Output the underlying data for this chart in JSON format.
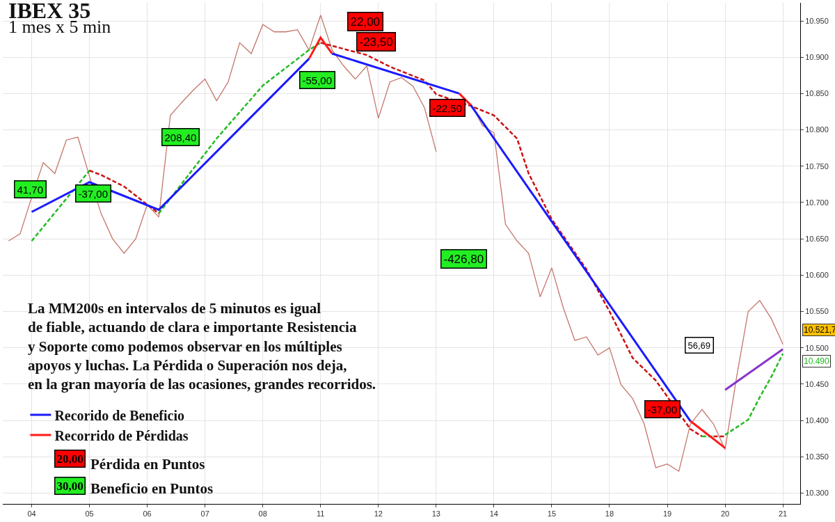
{
  "chart_data": {
    "type": "line",
    "title": "IBEX 35",
    "subtitle": "1 mes x 5 min",
    "categories": [
      null,
      null,
      "04",
      null,
      null,
      null,
      null,
      "05",
      null,
      null,
      null,
      null,
      "06",
      null,
      null,
      null,
      null,
      "07",
      null,
      null,
      null,
      null,
      "08",
      null,
      null,
      null,
      null,
      "11",
      null,
      null,
      null,
      null,
      "12",
      null,
      null,
      null,
      null,
      "13",
      null,
      null,
      null,
      null,
      "14",
      null,
      null,
      null,
      null,
      "15",
      null,
      null,
      null,
      null,
      "18",
      null,
      null,
      null,
      null,
      "19",
      null,
      null,
      null,
      null,
      "20",
      null,
      null,
      null,
      null,
      "21",
      null
    ],
    "ylim": [
      10285,
      10975
    ],
    "yticks": [
      {
        "value": 10300,
        "label": "10.300"
      },
      {
        "value": 10350,
        "label": "10.350"
      },
      {
        "value": 10400,
        "label": "10.400"
      },
      {
        "value": 10450,
        "label": "10.450"
      },
      {
        "value": 10500,
        "label": "10.500"
      },
      {
        "value": 10550,
        "label": "10.550"
      },
      {
        "value": 10600,
        "label": "10.600"
      },
      {
        "value": 10650,
        "label": "10.650"
      },
      {
        "value": 10700,
        "label": "10.700"
      },
      {
        "value": 10750,
        "label": "10.750"
      },
      {
        "value": 10800,
        "label": "10.800"
      },
      {
        "value": 10850,
        "label": "10.850"
      },
      {
        "value": 10900,
        "label": "10.900"
      },
      {
        "value": 10950,
        "label": "10.950"
      }
    ],
    "grid": true,
    "legend": "bottom left",
    "series": [
      {
        "color": "#c4756a",
        "values": [
          10647,
          10657,
          10707,
          10755,
          10740,
          10786,
          10790,
          10736,
          10685,
          10650,
          10630,
          10650,
          10697,
          10680,
          10820,
          10838,
          10855,
          10870,
          10840,
          10866,
          10920,
          10905,
          10945,
          10935,
          10935,
          10938,
          10910,
          10958,
          10910,
          10888,
          10870,
          10888,
          10816,
          10866,
          10872,
          10860,
          10830,
          10770,
          null,
          null,
          10836,
          10806,
          10796,
          10670,
          10647,
          10630,
          10570,
          10610,
          10555,
          10510,
          10515,
          10490,
          10500,
          10449,
          10430,
          10395,
          10335,
          10340,
          10330,
          10395,
          10415,
          10395,
          10360,
          10460,
          10550,
          10565,
          10540,
          10505,
          null
        ]
      },
      {
        "color": "#22bb22",
        "line_style": "dashed",
        "values": [
          null,
          null,
          10647,
          null,
          null,
          null,
          null,
          10744,
          null,
          null,
          null,
          null,
          null,
          null,
          null,
          null,
          null,
          null,
          null,
          null,
          null,
          null,
          null,
          null,
          null,
          null,
          null,
          null,
          null,
          null,
          null,
          null,
          null,
          null,
          null,
          null,
          null,
          null,
          null,
          null,
          null,
          null,
          null,
          null,
          null,
          null,
          null,
          null,
          null,
          null,
          null,
          null,
          null,
          null,
          null,
          null,
          null,
          null,
          null,
          null,
          null,
          null,
          null,
          null,
          null,
          null,
          null,
          null,
          null
        ]
      },
      {
        "color": "#cc1111",
        "line_style": "dashed",
        "values": [
          null,
          null,
          null,
          null,
          null,
          null,
          null,
          10744,
          10738,
          null,
          10722,
          null,
          10697,
          10685,
          null,
          null,
          null,
          null,
          null,
          null,
          null,
          null,
          null,
          null,
          null,
          null,
          null,
          null,
          null,
          null,
          null,
          null,
          null,
          null,
          null,
          null,
          null,
          null,
          null,
          null,
          null,
          null,
          null,
          null,
          null,
          null,
          null,
          null,
          null,
          null,
          null,
          null,
          null,
          null,
          null,
          null,
          null,
          null,
          null,
          null,
          null,
          null,
          null,
          null,
          null,
          null,
          null,
          null,
          null
        ]
      },
      {
        "color": "#22bb22",
        "line_style": "dashed",
        "values": [
          null,
          null,
          null,
          null,
          null,
          null,
          null,
          null,
          null,
          null,
          null,
          null,
          null,
          10685,
          null,
          null,
          null,
          null,
          10788,
          null,
          null,
          null,
          10861,
          null,
          null,
          null,
          10910,
          10920,
          null,
          null,
          null,
          null,
          null,
          null,
          null,
          null,
          null,
          null,
          null,
          null,
          null,
          null,
          null,
          null,
          null,
          null,
          null,
          null,
          null,
          null,
          null,
          null,
          null,
          null,
          null,
          null,
          null,
          null,
          null,
          null,
          null,
          null,
          null,
          null,
          null,
          null,
          null,
          null,
          null
        ]
      },
      {
        "color": "#cc1111",
        "line_style": "dashed",
        "values": [
          null,
          null,
          null,
          null,
          null,
          null,
          null,
          null,
          null,
          null,
          null,
          null,
          null,
          null,
          null,
          null,
          null,
          null,
          null,
          null,
          null,
          null,
          null,
          null,
          null,
          null,
          null,
          10920,
          null,
          null,
          null,
          10903,
          null,
          10887,
          null,
          null,
          10868,
          10849,
          null,
          null,
          10833,
          null,
          10820,
          null,
          10788,
          10740,
          null,
          10677,
          null,
          null,
          10608,
          null,
          10550,
          null,
          10486,
          null,
          10455,
          null,
          null,
          10388,
          10378,
          null,
          null,
          null,
          null,
          null,
          null,
          null,
          null
        ]
      },
      {
        "color": "#22bb22",
        "line_style": "dashed",
        "values": [
          null,
          null,
          null,
          null,
          null,
          null,
          null,
          null,
          null,
          null,
          null,
          null,
          null,
          null,
          null,
          null,
          null,
          null,
          null,
          null,
          null,
          null,
          null,
          null,
          null,
          null,
          null,
          null,
          null,
          null,
          null,
          null,
          null,
          null,
          null,
          null,
          null,
          null,
          null,
          null,
          null,
          null,
          null,
          null,
          null,
          null,
          null,
          null,
          null,
          null,
          null,
          null,
          null,
          null,
          null,
          null,
          null,
          null,
          null,
          null,
          10378,
          10378,
          null,
          null,
          null,
          null,
          null,
          null,
          null
        ]
      },
      {
        "color": "#cc1111",
        "line_style": "dashed",
        "values": [
          null,
          null,
          null,
          null,
          null,
          null,
          null,
          null,
          null,
          null,
          null,
          null,
          null,
          null,
          null,
          null,
          null,
          null,
          null,
          null,
          null,
          null,
          null,
          null,
          null,
          null,
          null,
          null,
          null,
          null,
          null,
          null,
          null,
          null,
          null,
          null,
          null,
          null,
          null,
          null,
          null,
          null,
          null,
          null,
          null,
          null,
          null,
          null,
          null,
          null,
          null,
          null,
          null,
          null,
          null,
          null,
          null,
          null,
          null,
          null,
          null,
          10378,
          10378,
          null,
          null,
          null,
          null,
          null,
          null
        ]
      },
      {
        "color": "#22bb22",
        "line_style": "dashed",
        "values": [
          null,
          null,
          null,
          null,
          null,
          null,
          null,
          null,
          null,
          null,
          null,
          null,
          null,
          null,
          null,
          null,
          null,
          null,
          null,
          null,
          null,
          null,
          null,
          null,
          null,
          null,
          null,
          null,
          null,
          null,
          null,
          null,
          null,
          null,
          null,
          null,
          null,
          null,
          null,
          null,
          null,
          null,
          null,
          null,
          null,
          null,
          null,
          null,
          null,
          null,
          null,
          null,
          null,
          null,
          null,
          null,
          null,
          null,
          null,
          null,
          null,
          null,
          10380,
          null,
          10401,
          10432,
          10460,
          10492,
          null
        ]
      },
      {
        "name": "Recorido de Beneficio",
        "color": "#1a1aff",
        "values": [
          null,
          null,
          10687,
          null,
          null,
          null,
          null,
          10728,
          null,
          null,
          null,
          null,
          null,
          10690,
          null,
          null,
          null,
          null,
          null,
          null,
          null,
          null,
          null,
          null,
          null,
          null,
          10898,
          null,
          null,
          null,
          null,
          null,
          null,
          null,
          null,
          null,
          null,
          null,
          null,
          null,
          null,
          null,
          null,
          null,
          null,
          null,
          null,
          null,
          null,
          null,
          null,
          null,
          null,
          null,
          null,
          null,
          null,
          null,
          null,
          null,
          null,
          null,
          null,
          null,
          null,
          null,
          null,
          null,
          null
        ]
      },
      {
        "name": "Recorrido de Pérdidas",
        "color": "#ff1a1a",
        "values": [
          null,
          null,
          null,
          null,
          null,
          null,
          null,
          null,
          null,
          null,
          null,
          null,
          null,
          null,
          null,
          null,
          null,
          null,
          null,
          null,
          null,
          null,
          null,
          null,
          null,
          null,
          10898,
          10927,
          10905,
          null,
          null,
          null,
          null,
          null,
          null,
          null,
          null,
          null,
          null,
          null,
          null,
          null,
          null,
          null,
          null,
          null,
          null,
          null,
          null,
          null,
          null,
          null,
          null,
          null,
          null,
          null,
          null,
          null,
          null,
          null,
          null,
          null,
          null,
          null,
          null,
          null,
          null,
          null,
          null
        ]
      },
      {
        "color": "#1a1aff",
        "values": [
          null,
          null,
          null,
          null,
          null,
          null,
          null,
          null,
          null,
          null,
          null,
          null,
          null,
          null,
          null,
          null,
          null,
          null,
          null,
          null,
          null,
          null,
          null,
          null,
          null,
          null,
          null,
          null,
          10905,
          null,
          null,
          null,
          null,
          null,
          null,
          null,
          null,
          null,
          null,
          10850,
          null,
          null,
          null,
          null,
          null,
          null,
          null,
          null,
          null,
          null,
          null,
          null,
          null,
          null,
          null,
          null,
          null,
          null,
          null,
          null,
          null,
          null,
          null,
          null,
          null,
          null,
          null,
          null,
          null
        ]
      },
      {
        "color": "#ff1a1a",
        "values": [
          null,
          null,
          null,
          null,
          null,
          null,
          null,
          null,
          null,
          null,
          null,
          null,
          null,
          null,
          null,
          null,
          null,
          null,
          null,
          null,
          null,
          null,
          null,
          null,
          null,
          null,
          null,
          null,
          null,
          null,
          null,
          null,
          null,
          null,
          null,
          null,
          null,
          null,
          null,
          10850,
          10834,
          null,
          null,
          null,
          null,
          null,
          null,
          null,
          null,
          null,
          null,
          null,
          null,
          null,
          null,
          null,
          null,
          null,
          null,
          null,
          null,
          null,
          null,
          null,
          null,
          null,
          null,
          null,
          null
        ]
      },
      {
        "color": "#1a1aff",
        "values": [
          null,
          null,
          null,
          null,
          null,
          null,
          null,
          null,
          null,
          null,
          null,
          null,
          null,
          null,
          null,
          null,
          null,
          null,
          null,
          null,
          null,
          null,
          null,
          null,
          null,
          null,
          null,
          null,
          null,
          null,
          null,
          null,
          null,
          null,
          null,
          null,
          null,
          null,
          null,
          null,
          10834,
          null,
          null,
          null,
          null,
          null,
          null,
          null,
          null,
          null,
          null,
          null,
          null,
          null,
          null,
          null,
          null,
          null,
          null,
          10399,
          null,
          null,
          null,
          null,
          null,
          null,
          null,
          null,
          null
        ]
      },
      {
        "color": "#ff1a1a",
        "values": [
          null,
          null,
          null,
          null,
          null,
          null,
          null,
          null,
          null,
          null,
          null,
          null,
          null,
          null,
          null,
          null,
          null,
          null,
          null,
          null,
          null,
          null,
          null,
          null,
          null,
          null,
          null,
          null,
          null,
          null,
          null,
          null,
          null,
          null,
          null,
          null,
          null,
          null,
          null,
          null,
          null,
          null,
          null,
          null,
          null,
          null,
          null,
          null,
          null,
          null,
          null,
          null,
          null,
          null,
          null,
          null,
          null,
          null,
          null,
          10399,
          null,
          null,
          10362,
          null,
          null,
          null,
          null,
          null,
          null
        ]
      },
      {
        "color": "#8833cc",
        "values": [
          null,
          null,
          null,
          null,
          null,
          null,
          null,
          null,
          null,
          null,
          null,
          null,
          null,
          null,
          null,
          null,
          null,
          null,
          null,
          null,
          null,
          null,
          null,
          null,
          null,
          null,
          null,
          null,
          null,
          null,
          null,
          null,
          null,
          null,
          null,
          null,
          null,
          null,
          null,
          null,
          null,
          null,
          null,
          null,
          null,
          null,
          null,
          null,
          null,
          null,
          null,
          null,
          null,
          null,
          null,
          null,
          null,
          null,
          null,
          null,
          null,
          null,
          10442,
          null,
          null,
          null,
          null,
          10498,
          null
        ]
      }
    ],
    "annotations": [
      "41,70",
      {
        "text": "-37,00",
        "y": 10712
      },
      "208,40",
      "22,00",
      "-23,50",
      "-55,00",
      "-22,50",
      "-426,80",
      "-37,00",
      "56,69",
      "10.521,7",
      "10.490",
      "La MM200s en intervalos de 5 minutos es igual\nde fiable, actuando de clara e importante Resistencia\ny Soporte como podemos observar en los múltiples\napoyos y luchas. La Pérdida o Superación nos deja,\nen la gran mayoría de las ocasiones, grandes recorridos.",
      "20,00",
      "Pérdida en Puntos",
      "30,00",
      "Beneficio en Puntos"
    ]
  }
}
